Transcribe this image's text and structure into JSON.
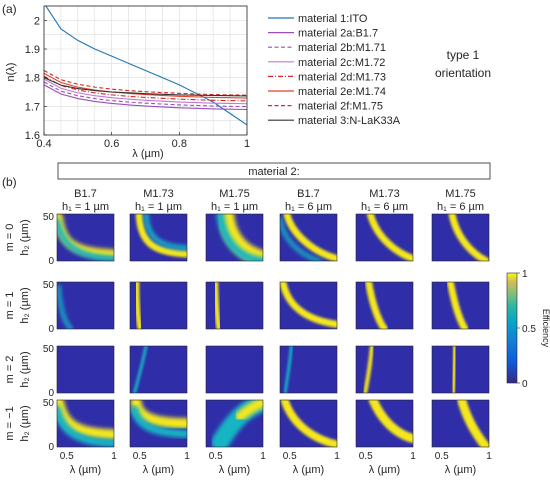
{
  "panel_a": {
    "label": "(a)",
    "side_label_line1": "type 1",
    "side_label_line2": "orientation",
    "chart_data": {
      "type": "line",
      "xlabel": "λ (µm)",
      "ylabel": "n(λ)",
      "xlim": [
        0.4,
        1.0
      ],
      "ylim": [
        1.6,
        2.05
      ],
      "xticks": [
        "0.4",
        "0.6",
        "0.8",
        "1"
      ],
      "xtick_values": [
        0.4,
        0.6,
        0.8,
        1.0
      ],
      "yticks": [
        "1.6",
        "1.7",
        "1.8",
        "1.9",
        "2"
      ],
      "ytick_values": [
        1.6,
        1.7,
        1.8,
        1.9,
        2.0
      ],
      "grid": true,
      "legend": "right",
      "x": [
        0.4,
        0.45,
        0.5,
        0.55,
        0.6,
        0.65,
        0.7,
        0.75,
        0.8,
        0.85,
        0.9,
        0.95,
        1.0
      ],
      "series": [
        {
          "name": "material 1:ITO",
          "color": "#1f77b4",
          "dash": "solid",
          "values": [
            2.06,
            1.97,
            1.93,
            1.9,
            1.875,
            1.85,
            1.825,
            1.8,
            1.775,
            1.745,
            1.715,
            1.675,
            1.635
          ]
        },
        {
          "name": "material 2a:B1.7",
          "color": "#9b4fb8",
          "dash": "solid",
          "values": [
            1.775,
            1.743,
            1.727,
            1.717,
            1.71,
            1.705,
            1.701,
            1.698,
            1.695,
            1.693,
            1.691,
            1.69,
            1.689
          ]
        },
        {
          "name": "material 2b:M1.71",
          "color": "#9b4fb8",
          "dash": "dashed",
          "values": [
            1.785,
            1.753,
            1.737,
            1.727,
            1.72,
            1.715,
            1.711,
            1.708,
            1.705,
            1.703,
            1.701,
            1.7,
            1.699
          ]
        },
        {
          "name": "material 2c:M1.72",
          "color": "#c07bd0",
          "dash": "solid",
          "values": [
            1.795,
            1.763,
            1.747,
            1.737,
            1.73,
            1.725,
            1.721,
            1.718,
            1.715,
            1.713,
            1.711,
            1.71,
            1.709
          ]
        },
        {
          "name": "material 2d:M1.73",
          "color": "#d62728",
          "dash": "dashdot",
          "values": [
            1.805,
            1.773,
            1.757,
            1.747,
            1.74,
            1.735,
            1.731,
            1.728,
            1.725,
            1.723,
            1.721,
            1.72,
            1.719
          ]
        },
        {
          "name": "material 2e:M1.74",
          "color": "#e0442a",
          "dash": "solid",
          "values": [
            1.815,
            1.783,
            1.767,
            1.757,
            1.75,
            1.745,
            1.741,
            1.738,
            1.735,
            1.733,
            1.731,
            1.73,
            1.729
          ]
        },
        {
          "name": "material 2f:M1.75",
          "color": "#d62728",
          "dash": "dashed",
          "values": [
            1.825,
            1.793,
            1.777,
            1.767,
            1.76,
            1.755,
            1.751,
            1.748,
            1.745,
            1.743,
            1.741,
            1.74,
            1.739
          ]
        },
        {
          "name": "material 3:N-LaK33A",
          "color": "#333333",
          "dash": "solid",
          "values": [
            1.8,
            1.774,
            1.762,
            1.755,
            1.75,
            1.747,
            1.744,
            1.742,
            1.74,
            1.739,
            1.738,
            1.737,
            1.736
          ]
        }
      ]
    }
  },
  "panel_b": {
    "label": "(b)",
    "header": "material 2:",
    "chart_data": {
      "type": "heatmap",
      "columns": [
        {
          "material": "B1.7",
          "h1": "h₁ = 1 µm"
        },
        {
          "material": "M1.73",
          "h1": "h₁ = 1 µm"
        },
        {
          "material": "M1.75",
          "h1": "h₁ = 1 µm"
        },
        {
          "material": "B1.7",
          "h1": "h₁ = 6 µm"
        },
        {
          "material": "M1.73",
          "h1": "h₁ = 6 µm"
        },
        {
          "material": "M1.75",
          "h1": "h₁ = 6 µm"
        }
      ],
      "rows": [
        "m = 0",
        "m = 1",
        "m = 2",
        "m = −1"
      ],
      "xlabel": "λ (µm)",
      "ylabel": "h₂ (µm)",
      "xlim": [
        0.4,
        1.0
      ],
      "ylim": [
        0,
        50
      ],
      "xticks": [
        "0.5",
        "1"
      ],
      "yticks": [
        "0",
        "50"
      ],
      "colorbar": {
        "label": "Efficiency",
        "min": 0,
        "max": 1,
        "ticks": [
          "0",
          "0.5",
          "1"
        ]
      }
    }
  }
}
